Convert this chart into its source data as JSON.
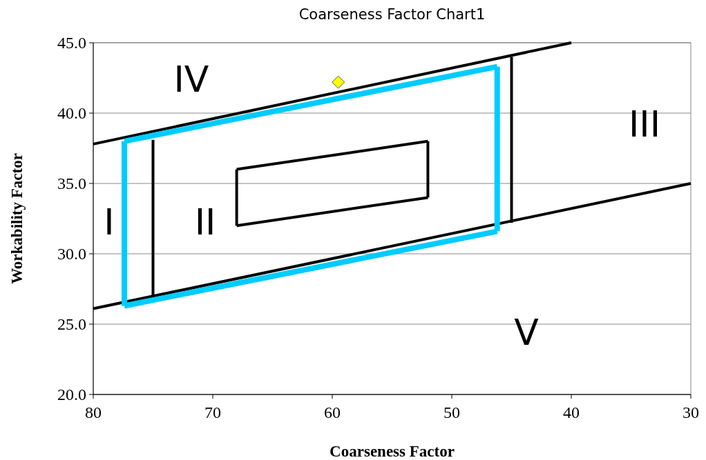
{
  "chart_data": {
    "type": "line",
    "title": "Coarseness Factor Chart1",
    "xlabel": "Coarseness Factor",
    "ylabel": "Workability Factor",
    "xlim": [
      80,
      30
    ],
    "xticks": [
      80,
      70,
      60,
      50,
      40,
      30
    ],
    "ylim": [
      20,
      45
    ],
    "yticks": [
      {
        "value": 20,
        "label": "20.0"
      },
      {
        "value": 25,
        "label": "25.0"
      },
      {
        "value": 30,
        "label": "30.0"
      },
      {
        "value": 35,
        "label": "35.0"
      },
      {
        "value": 40,
        "label": "40.0"
      },
      {
        "value": 45,
        "label": "45.0"
      }
    ],
    "grid": "y",
    "marker": "none",
    "line_style": "solid",
    "series": [
      {
        "color": "#000000",
        "x": [
          80,
          40
        ],
        "values": [
          37.8,
          45
        ]
      },
      {
        "color": "#000000",
        "x": [
          80,
          30
        ],
        "values": [
          26.1,
          35
        ]
      },
      {
        "color": "#000000",
        "x": [
          75,
          75
        ],
        "values": [
          27,
          38.1
        ]
      },
      {
        "color": "#000000",
        "x": [
          45,
          45
        ],
        "values": [
          32.2,
          44
        ]
      },
      {
        "color": "#000000",
        "x": [
          68,
          52
        ],
        "values": [
          36,
          38
        ]
      },
      {
        "color": "#000000",
        "x": [
          52,
          52
        ],
        "values": [
          38,
          34
        ]
      },
      {
        "color": "#000000",
        "x": [
          68,
          52
        ],
        "values": [
          32,
          34
        ]
      },
      {
        "color": "#000000",
        "x": [
          68,
          68
        ],
        "values": [
          32,
          36
        ]
      },
      {
        "color": "#00ccff",
        "x": [
          77.4,
          77.4
        ],
        "values": [
          26.3,
          38
        ]
      },
      {
        "color": "#00ccff",
        "x": [
          77.4,
          46.2
        ],
        "values": [
          38,
          43.3
        ]
      },
      {
        "color": "#00ccff",
        "x": [
          46.2,
          46.2
        ],
        "values": [
          43.3,
          31.6
        ]
      },
      {
        "color": "#00ccff",
        "x": [
          77.4,
          46.2
        ],
        "values": [
          26.3,
          31.6
        ]
      },
      {
        "type": "scatter",
        "marker": "diamond",
        "color": "#ffff00",
        "x": [
          59.5
        ],
        "values": [
          42.2
        ]
      }
    ],
    "annotations": [
      "IV",
      "III",
      "I",
      "II",
      "V"
    ]
  }
}
